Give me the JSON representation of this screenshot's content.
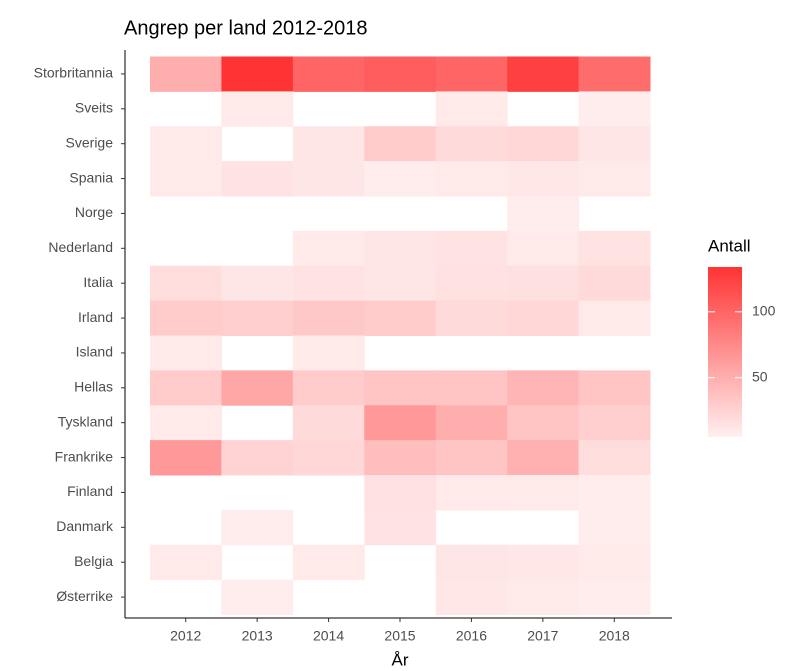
{
  "chart_data": {
    "type": "heatmap",
    "title": "Angrep per land 2012-2018",
    "x_label": "År",
    "x": [
      "2012",
      "2013",
      "2014",
      "2015",
      "2016",
      "2017",
      "2018"
    ],
    "categories": [
      "Storbritannia",
      "Sveits",
      "Sverige",
      "Spania",
      "Norge",
      "Nederland",
      "Italia",
      "Irland",
      "Island",
      "Hellas",
      "Tyskland",
      "Frankrike",
      "Finland",
      "Danmark",
      "Belgia",
      "Østerrike"
    ],
    "values": [
      [
        50,
        134,
        100,
        105,
        100,
        125,
        95
      ],
      [
        null,
        10,
        null,
        null,
        10,
        null,
        7
      ],
      [
        10,
        null,
        12,
        30,
        20,
        22,
        12
      ],
      [
        10,
        14,
        12,
        8,
        10,
        11,
        9
      ],
      [
        null,
        null,
        null,
        null,
        null,
        8,
        null
      ],
      [
        null,
        null,
        10,
        12,
        14,
        10,
        14
      ],
      [
        18,
        12,
        14,
        12,
        15,
        16,
        20
      ],
      [
        30,
        28,
        32,
        30,
        20,
        22,
        10
      ],
      [
        10,
        null,
        10,
        null,
        null,
        null,
        null
      ],
      [
        30,
        55,
        30,
        35,
        35,
        45,
        35
      ],
      [
        10,
        null,
        20,
        65,
        50,
        35,
        28
      ],
      [
        65,
        25,
        22,
        40,
        35,
        48,
        18
      ],
      [
        null,
        null,
        null,
        15,
        10,
        9,
        8
      ],
      [
        null,
        8,
        null,
        14,
        null,
        null,
        7
      ],
      [
        10,
        null,
        10,
        null,
        12,
        11,
        10
      ],
      [
        null,
        8,
        null,
        null,
        11,
        9,
        8
      ]
    ],
    "legend_title": "Antall",
    "colorlim": [
      5,
      134
    ],
    "colorticks": [
      50,
      100
    ],
    "low_color": "#fff0f0",
    "high_color": "#ff3333"
  }
}
